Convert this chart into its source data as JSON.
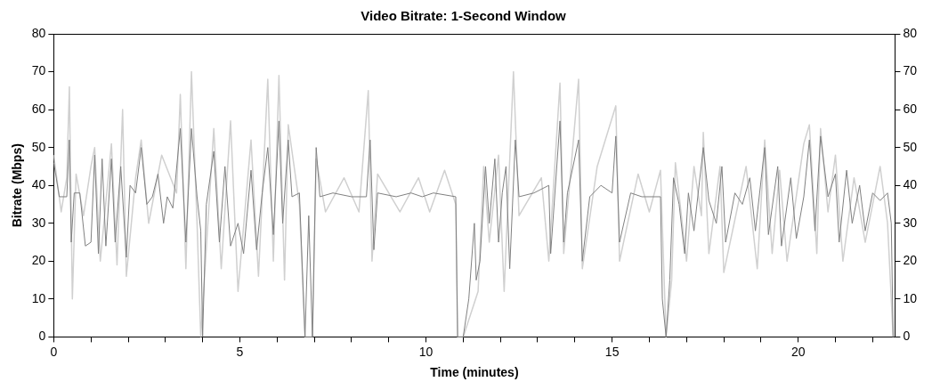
{
  "chart_data": {
    "type": "line",
    "title": "Video Bitrate: 1-Second Window",
    "xlabel": "Time (minutes)",
    "ylabel": "Bitrate (Mbps)",
    "xlim": [
      0,
      22.6
    ],
    "xticks": [
      0,
      {
        "value": 1,
        "label": null
      },
      {
        "value": 2,
        "label": null
      },
      {
        "value": 3,
        "label": null
      },
      {
        "value": 4,
        "label": null
      },
      5,
      {
        "value": 6,
        "label": null
      },
      {
        "value": 7,
        "label": null
      },
      {
        "value": 8,
        "label": null
      },
      {
        "value": 9,
        "label": null
      },
      10,
      {
        "value": 11,
        "label": null
      },
      {
        "value": 12,
        "label": null
      },
      {
        "value": 13,
        "label": null
      },
      {
        "value": 14,
        "label": null
      },
      15,
      {
        "value": 16,
        "label": null
      },
      {
        "value": 17,
        "label": null
      },
      {
        "value": 18,
        "label": null
      },
      {
        "value": 19,
        "label": null
      },
      20,
      {
        "value": 21,
        "label": null
      },
      {
        "value": 22,
        "label": null
      }
    ],
    "ylim": [
      0,
      80
    ],
    "yticks": [
      0,
      10,
      20,
      30,
      40,
      50,
      60,
      70,
      80
    ],
    "y2lim": [
      0,
      80
    ],
    "y2ticks": [
      0,
      10,
      20,
      30,
      40,
      50,
      60,
      70,
      80
    ],
    "grid": false,
    "legend": false,
    "marker": "none",
    "line_style": "solid",
    "series": [
      {
        "color": "#d0d0d0",
        "x": [
          0,
          0.2,
          0.35,
          0.42,
          0.5,
          0.6,
          0.8,
          1.0,
          1.1,
          1.25,
          1.55,
          1.7,
          1.85,
          1.95,
          2.2,
          2.35,
          2.55,
          2.9,
          3.3,
          3.4,
          3.55,
          3.7,
          3.85,
          3.95,
          4.3,
          4.5,
          4.75,
          4.95,
          5.3,
          5.5,
          5.75,
          5.9,
          6.05,
          6.2,
          6.3,
          6.6,
          6.75,
          6.95,
          7.05,
          7.3,
          7.8,
          8.2,
          8.45,
          8.55,
          8.7,
          9.3,
          9.8,
          10.1,
          10.5,
          10.8,
          10.85,
          11.0,
          11.4,
          11.55,
          11.7,
          11.95,
          12.1,
          12.35,
          12.5,
          13.1,
          13.3,
          13.6,
          13.7,
          14.1,
          14.2,
          14.6,
          15.1,
          15.2,
          15.7,
          16.0,
          16.3,
          16.45,
          16.6,
          16.7,
          17.0,
          17.2,
          17.4,
          17.45,
          17.6,
          17.9,
          18.0,
          18.6,
          18.9,
          19.1,
          19.3,
          19.5,
          19.7,
          20.15,
          20.3,
          20.5,
          20.6,
          20.8,
          21.0,
          21.2,
          21.5,
          21.8,
          22.2,
          22.4,
          22.55
        ],
        "values": [
          48,
          33,
          42,
          66,
          10,
          43,
          32,
          45,
          50,
          20,
          51,
          19,
          60,
          16,
          42,
          52,
          30,
          48,
          38,
          64,
          18,
          70,
          30,
          0,
          55,
          18,
          57,
          12,
          52,
          16,
          68,
          20,
          69,
          15,
          56,
          35,
          0,
          0,
          47,
          33,
          42,
          33,
          65,
          20,
          43,
          33,
          42,
          33,
          44,
          35,
          0,
          0,
          12,
          45,
          25,
          48,
          12,
          70,
          32,
          42,
          20,
          67,
          22,
          68,
          18,
          45,
          61,
          20,
          43,
          33,
          44,
          0,
          15,
          46,
          20,
          45,
          32,
          54,
          22,
          45,
          17,
          45,
          18,
          52,
          22,
          44,
          20,
          51,
          56,
          22,
          55,
          33,
          48,
          20,
          42,
          25,
          45,
          30,
          0
        ]
      },
      {
        "color": "#808080",
        "x": [
          0,
          0.15,
          0.35,
          0.42,
          0.47,
          0.55,
          0.7,
          0.85,
          1.0,
          1.1,
          1.2,
          1.3,
          1.4,
          1.55,
          1.65,
          1.8,
          1.95,
          2.05,
          2.2,
          2.35,
          2.5,
          2.65,
          2.8,
          2.95,
          3.05,
          3.2,
          3.4,
          3.55,
          3.7,
          3.85,
          3.95,
          4.0,
          4.1,
          4.3,
          4.45,
          4.6,
          4.75,
          4.95,
          5.1,
          5.3,
          5.45,
          5.6,
          5.75,
          5.9,
          6.05,
          6.15,
          6.3,
          6.4,
          6.6,
          6.75,
          6.85,
          6.95,
          7.05,
          7.15,
          7.5,
          8.0,
          8.4,
          8.5,
          8.6,
          8.7,
          9.2,
          9.6,
          9.9,
          10.2,
          10.8,
          10.85,
          11.0,
          11.15,
          11.3,
          11.35,
          11.45,
          11.6,
          11.7,
          11.85,
          11.95,
          12.05,
          12.15,
          12.25,
          12.4,
          12.5,
          12.9,
          13.3,
          13.35,
          13.6,
          13.7,
          13.8,
          14.1,
          14.2,
          14.4,
          14.7,
          15.0,
          15.1,
          15.2,
          15.5,
          15.8,
          16.3,
          16.35,
          16.45,
          16.55,
          16.65,
          16.8,
          16.95,
          17.05,
          17.2,
          17.45,
          17.6,
          17.8,
          17.95,
          18.05,
          18.3,
          18.5,
          18.7,
          18.85,
          19.1,
          19.2,
          19.45,
          19.55,
          19.8,
          19.95,
          20.15,
          20.3,
          20.45,
          20.6,
          20.8,
          21.0,
          21.1,
          21.3,
          21.45,
          21.65,
          21.8,
          22.0,
          22.2,
          22.4,
          22.5,
          22.55
        ],
        "values": [
          46,
          37,
          37,
          52,
          25,
          38,
          38,
          24,
          25,
          48,
          22,
          47,
          24,
          47,
          25,
          45,
          21,
          40,
          38,
          50,
          35,
          37,
          43,
          30,
          37,
          34,
          55,
          25,
          55,
          37,
          28,
          0,
          35,
          49,
          25,
          45,
          24,
          30,
          22,
          44,
          23,
          38,
          50,
          27,
          57,
          30,
          52,
          37,
          38,
          0,
          32,
          0,
          50,
          37,
          38,
          37,
          37,
          52,
          23,
          38,
          37,
          38,
          37,
          38,
          37,
          0,
          0,
          10,
          30,
          15,
          20,
          45,
          30,
          47,
          25,
          38,
          45,
          18,
          52,
          37,
          38,
          40,
          22,
          57,
          25,
          38,
          52,
          20,
          37,
          40,
          38,
          53,
          25,
          38,
          37,
          37,
          10,
          0,
          15,
          42,
          35,
          22,
          38,
          28,
          50,
          36,
          30,
          45,
          25,
          38,
          35,
          42,
          28,
          50,
          27,
          45,
          24,
          42,
          26,
          37,
          52,
          28,
          53,
          37,
          43,
          25,
          44,
          30,
          40,
          28,
          38,
          36,
          38,
          30,
          0
        ]
      }
    ]
  }
}
